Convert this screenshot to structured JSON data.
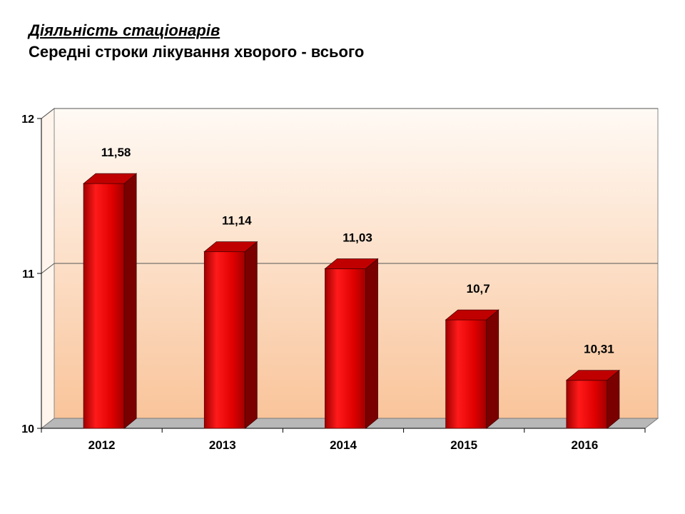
{
  "header": {
    "title": "Діяльність  стаціонарів",
    "subtitle": "Середні строки лікування хворого - всього"
  },
  "chart_data": {
    "type": "bar",
    "categories": [
      "2012",
      "2013",
      "2014",
      "2015",
      "2016"
    ],
    "values": [
      11.58,
      11.14,
      11.03,
      10.7,
      10.31
    ],
    "value_labels": [
      "11,58",
      "11,14",
      "11,03",
      "10,7",
      "10,31"
    ],
    "ylim": [
      10,
      12
    ],
    "yticks": [
      10,
      11,
      12
    ],
    "ytick_labels": [
      "10",
      "11",
      "12"
    ],
    "grid": true,
    "legend": "none",
    "style": "3d",
    "colors": {
      "bar": "#e00000",
      "bar_dark": "#7a0000",
      "bar_top": "#c00000",
      "floor": "#b8b8b8",
      "plot_top": "#fffaf5",
      "plot_bottom": "#f9c49a"
    }
  }
}
